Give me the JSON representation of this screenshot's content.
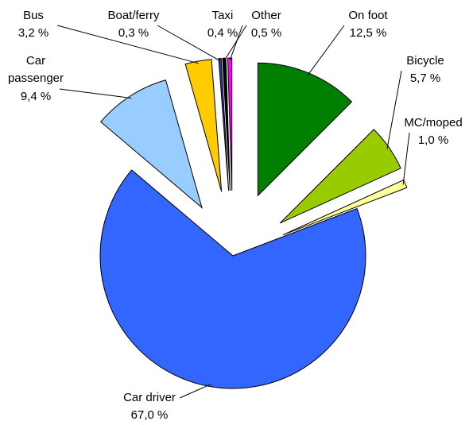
{
  "chart_data": {
    "type": "pie",
    "categories": [
      "On foot",
      "Bicycle",
      "MC/moped",
      "Car driver",
      "Car passenger",
      "Bus",
      "Boat/ferry",
      "Taxi",
      "Other"
    ],
    "values": [
      12.5,
      5.7,
      1.0,
      67.0,
      9.4,
      3.2,
      0.3,
      0.4,
      0.5
    ],
    "value_labels": [
      "12,5 %",
      "5,7 %",
      "1,0 %",
      "67,0 %",
      "9,4 %",
      "3,2 %",
      "0,3 %",
      "0,4 %",
      "0,5 %"
    ],
    "colors": [
      "#007f00",
      "#99cc00",
      "#ffff99",
      "#3366ff",
      "#99ccff",
      "#ffcc00",
      "#333399",
      "#000000",
      "#ff00ff"
    ]
  }
}
